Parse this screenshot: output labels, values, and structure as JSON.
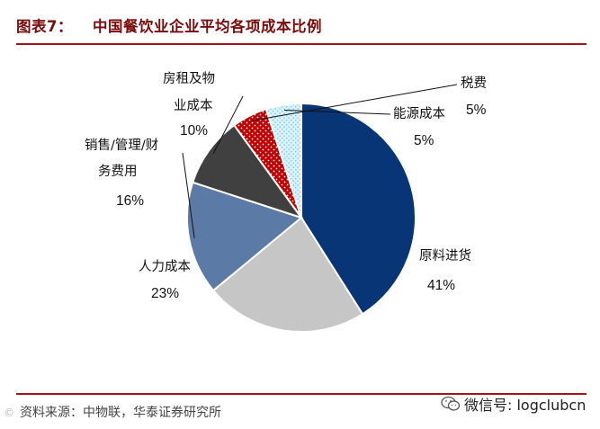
{
  "title": {
    "prefix": "图表7：",
    "text": "中国餐饮业企业平均各项成本比例"
  },
  "source": "资料来源：中物联，华泰证券研究所",
  "watermark": {
    "label": "微信号: logclubcn",
    "icon": "wechat-icon",
    "corner_text": "©"
  },
  "colors": {
    "title": "#7a0b0b",
    "rule": "#a31414"
  },
  "chart_data": {
    "type": "pie",
    "start_angle_deg": 0,
    "direction": "clockwise",
    "slices": [
      {
        "label": "原料进货",
        "value": 41,
        "value_label": "41%",
        "color": "#083575",
        "pattern": ""
      },
      {
        "label": "人力成本",
        "value": 23,
        "value_label": "23%",
        "color": "#c6c6c6",
        "pattern": ""
      },
      {
        "label": "销售/管理/财务费用",
        "label_lines": [
          "销售/管理/财",
          "务费用"
        ],
        "value": 16,
        "value_label": "16%",
        "color": "#5b7aa5",
        "pattern": ""
      },
      {
        "label": "房租及物业成本",
        "label_lines": [
          "房租及物",
          "业成本"
        ],
        "value": 10,
        "value_label": "10%",
        "color": "#404040",
        "pattern": ""
      },
      {
        "label": "税费",
        "value": 5,
        "value_label": "5%",
        "color": "#c00000",
        "pattern": "dots"
      },
      {
        "label": "能源成本",
        "value": 5,
        "value_label": "5%",
        "color": "#cfeffb",
        "pattern": "dots"
      }
    ]
  }
}
